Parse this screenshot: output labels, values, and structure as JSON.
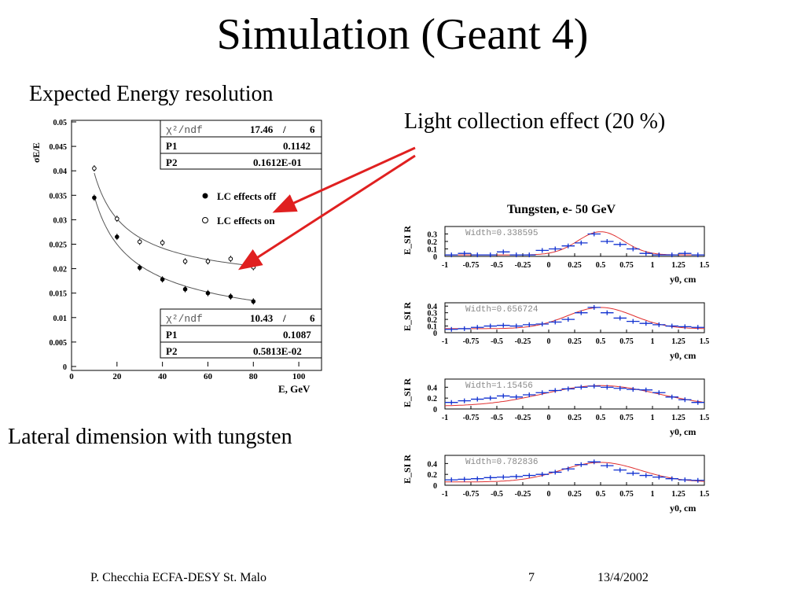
{
  "slide": {
    "title": "Simulation (Geant 4)",
    "caption_resolution": "Expected Energy resolution",
    "caption_light": "Light collection effect (20 %)",
    "caption_lateral": "Lateral dimension  with tungsten"
  },
  "footer": {
    "author": "P. Checchia  ECFA-DESY St. Malo",
    "page": "7",
    "date": "13/4/2002"
  },
  "colors": {
    "arrow": "#e02020",
    "errorbar": "#1030d0",
    "fit": "#e03030",
    "pointfill": "#000000"
  },
  "chart_data": [
    {
      "type": "scatter",
      "title": "",
      "xlabel": "E, GeV",
      "ylabel": "σE/E",
      "xlim": [
        0,
        110
      ],
      "ylim": [
        0,
        0.05
      ],
      "x_ticks": [
        0,
        20,
        40,
        60,
        80,
        100
      ],
      "y_ticks": [
        0,
        0.005,
        0.01,
        0.015,
        0.02,
        0.025,
        0.03,
        0.035,
        0.04,
        0.045,
        0.05
      ],
      "legend": [
        "LC effects off",
        "LC effects on"
      ],
      "series": [
        {
          "name": "LC effects off",
          "marker": "filled",
          "x": [
            10,
            20,
            30,
            40,
            50,
            60,
            70,
            80
          ],
          "y": [
            0.0345,
            0.0265,
            0.0202,
            0.0178,
            0.0158,
            0.015,
            0.0143,
            0.0133
          ],
          "fit": {
            "chi2_ndf_label": "χ²/ndf",
            "chi2": "10.43",
            "ndf": "6",
            "P1": "0.1087",
            "P2": "0.5813E-02"
          }
        },
        {
          "name": "LC effects on",
          "marker": "open",
          "x": [
            10,
            20,
            30,
            40,
            50,
            60,
            70,
            80
          ],
          "y": [
            0.0405,
            0.0302,
            0.0255,
            0.0253,
            0.0215,
            0.0215,
            0.022,
            0.0203
          ],
          "fit": {
            "chi2_ndf_label": "χ²/ndf",
            "chi2": "17.46",
            "ndf": "6",
            "P1": "0.1142",
            "P2": "0.1612E-01"
          }
        }
      ]
    },
    {
      "type": "histogram",
      "title": "Tungsten, e- 50 GeV",
      "ylabel": "E_SI R",
      "xlabel": "y0, cm",
      "x_ticks": [
        "-1",
        "-0.75",
        "-0.5",
        "-0.25",
        "0",
        "0.25",
        "0.5",
        "0.75",
        "1",
        "1.25",
        "1.5"
      ],
      "panels": [
        {
          "width_label": "Width=0.338595",
          "y_ticks": [
            "0",
            "0.1",
            "0.2",
            "0.3"
          ],
          "ymax": 0.4,
          "sigma": 0.22,
          "peak": 0.33,
          "base": 0.02,
          "points": [
            0.02,
            0.04,
            0.02,
            0.02,
            0.06,
            0.02,
            0.02,
            0.08,
            0.1,
            0.14,
            0.18,
            0.3,
            0.2,
            0.16,
            0.1,
            0.04,
            0.02,
            0.02,
            0.04,
            0.02
          ]
        },
        {
          "width_label": "Width=0.656724",
          "y_ticks": [
            "0",
            "0.1",
            "0.2",
            "0.3",
            "0.4"
          ],
          "ymax": 0.45,
          "sigma": 0.32,
          "peak": 0.38,
          "base": 0.06,
          "points": [
            0.05,
            0.06,
            0.08,
            0.1,
            0.11,
            0.1,
            0.12,
            0.13,
            0.16,
            0.2,
            0.3,
            0.38,
            0.3,
            0.22,
            0.17,
            0.14,
            0.12,
            0.1,
            0.09,
            0.08
          ]
        },
        {
          "width_label": "Width=1.15456",
          "y_ticks": [
            "0",
            "0.2",
            "0.4"
          ],
          "ymax": 0.55,
          "sigma": 0.55,
          "peak": 0.43,
          "base": 0.05,
          "points": [
            0.12,
            0.15,
            0.18,
            0.2,
            0.24,
            0.22,
            0.26,
            0.3,
            0.34,
            0.37,
            0.4,
            0.42,
            0.4,
            0.38,
            0.36,
            0.35,
            0.3,
            0.22,
            0.17,
            0.12
          ]
        },
        {
          "width_label": "Width=0.782836",
          "y_ticks": [
            "0",
            "0.2",
            "0.4"
          ],
          "ymax": 0.55,
          "sigma": 0.38,
          "peak": 0.42,
          "base": 0.06,
          "points": [
            0.1,
            0.11,
            0.12,
            0.14,
            0.15,
            0.16,
            0.18,
            0.2,
            0.24,
            0.3,
            0.38,
            0.43,
            0.36,
            0.28,
            0.22,
            0.18,
            0.15,
            0.12,
            0.1,
            0.09
          ]
        }
      ]
    }
  ]
}
